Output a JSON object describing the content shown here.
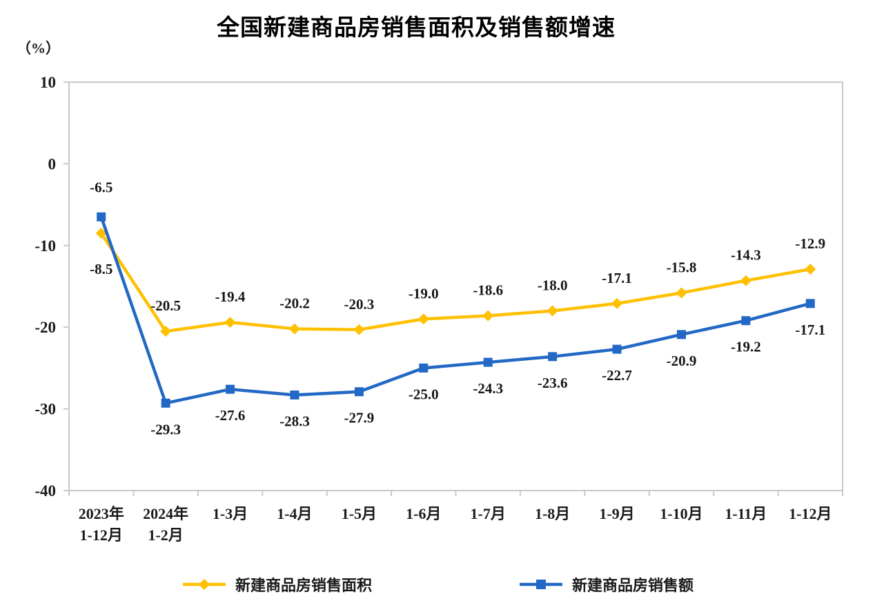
{
  "chart": {
    "title": "全国新建商品房销售面积及销售额增速",
    "unit_label": "（%）"
  },
  "chart_data": {
    "type": "line",
    "title": "全国新建商品房销售面积及销售额增速",
    "ylabel": "（%）",
    "xlabel": "",
    "ylim": [
      -40,
      10
    ],
    "yticks": [
      10,
      0,
      -10,
      -20,
      -30,
      -40
    ],
    "grid": false,
    "legend_position": "bottom",
    "categories": [
      [
        "2023年",
        "1-12月"
      ],
      [
        "2024年",
        "1-2月"
      ],
      [
        "1-3月"
      ],
      [
        "1-4月"
      ],
      [
        "1-5月"
      ],
      [
        "1-6月"
      ],
      [
        "1-7月"
      ],
      [
        "1-8月"
      ],
      [
        "1-9月"
      ],
      [
        "1-10月"
      ],
      [
        "1-11月"
      ],
      [
        "1-12月"
      ]
    ],
    "series": [
      {
        "name": "新建商品房销售面积",
        "color": "#FFC000",
        "marker": "diamond",
        "values": [
          -8.5,
          -20.5,
          -19.4,
          -20.2,
          -20.3,
          -19.0,
          -18.6,
          -18.0,
          -17.1,
          -15.8,
          -14.3,
          -12.9
        ]
      },
      {
        "name": "新建商品房销售额",
        "color": "#2268C4",
        "marker": "square",
        "values": [
          -6.5,
          -29.3,
          -27.6,
          -28.3,
          -27.9,
          -25.0,
          -24.3,
          -23.6,
          -22.7,
          -20.9,
          -19.2,
          -17.1
        ]
      }
    ],
    "axis_color": "#c9c9c9",
    "text_color": "#1a1a1a"
  }
}
